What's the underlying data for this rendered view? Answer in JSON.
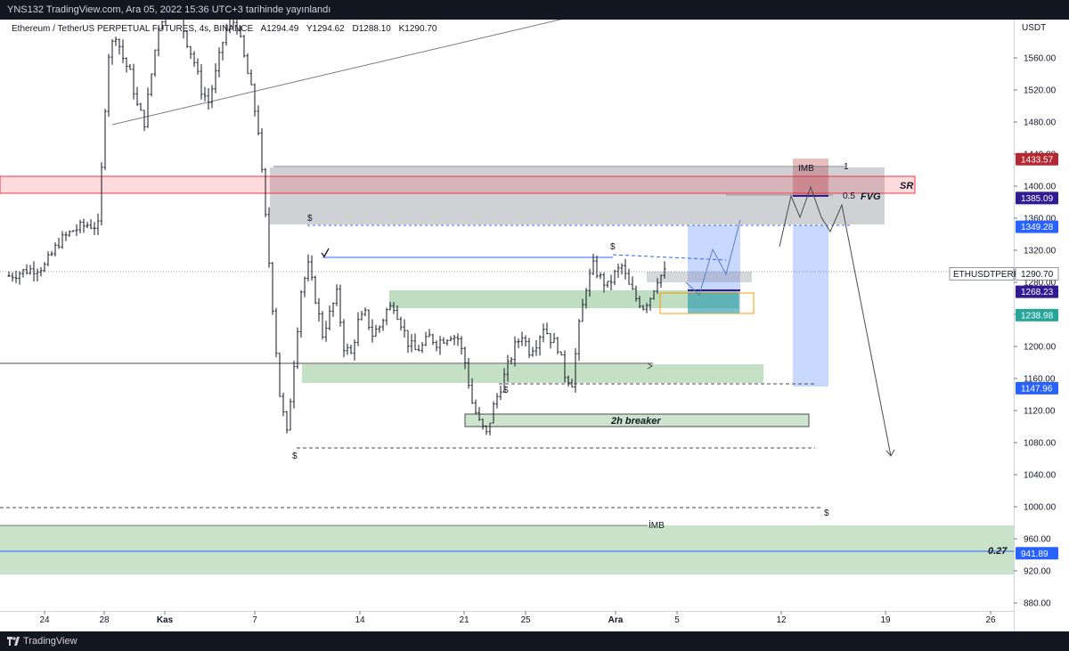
{
  "header": {
    "publish_line": "YNS132 TradingView.com, Ara 05, 2022 15:36 UTC+3 tarihinde yayınlandı"
  },
  "footer": {
    "brand": "TradingView",
    "logo_icon": "tradingview-logo-icon"
  },
  "legend": {
    "symbol": "Ethereum / TetherUS PERPETUAL FUTURES, 4s, BINANCE",
    "open": "A1294.49",
    "high": "Y1294.62",
    "low": "D1288.10",
    "close": "K1290.70"
  },
  "colors": {
    "background": "#ffffff",
    "bar_color": "#131722",
    "demand_zone": "#9ccc9f",
    "sr_zone": "#f23645",
    "fvg_zone": "#787b86",
    "projection": "#2962ff",
    "stop_box": "#b22833"
  },
  "chart_data": {
    "type": "ohlc",
    "symbol": "ETHUSDTPERP",
    "currency_label": "USDT",
    "ylim": [
      860,
      1630
    ],
    "y_ticks": [
      880,
      920,
      960,
      1000,
      1040,
      1080,
      1120,
      1160,
      1200,
      1240,
      1280,
      1320,
      1360,
      1400,
      1440,
      1480,
      1520,
      1560
    ],
    "x_ticks": [
      "24",
      "28",
      "Kas",
      "7",
      "14",
      "21",
      "25",
      "Ara",
      "5",
      "12",
      "19",
      "26"
    ],
    "price_path": [
      [
        0,
        1288
      ],
      [
        5,
        1295
      ],
      [
        10,
        1300
      ],
      [
        14,
        1330
      ],
      [
        18,
        1345
      ],
      [
        22,
        1352
      ],
      [
        25,
        1350
      ],
      [
        26,
        1420
      ],
      [
        27,
        1500
      ],
      [
        28,
        1565
      ],
      [
        30,
        1590
      ],
      [
        32,
        1560
      ],
      [
        34,
        1540
      ],
      [
        36,
        1500
      ],
      [
        38,
        1480
      ],
      [
        40,
        1540
      ],
      [
        42,
        1600
      ],
      [
        44,
        1620
      ],
      [
        46,
        1625
      ],
      [
        48,
        1610
      ],
      [
        50,
        1580
      ],
      [
        52,
        1555
      ],
      [
        54,
        1520
      ],
      [
        56,
        1505
      ],
      [
        58,
        1540
      ],
      [
        60,
        1580
      ],
      [
        62,
        1610
      ],
      [
        64,
        1600
      ],
      [
        66,
        1560
      ],
      [
        68,
        1520
      ],
      [
        70,
        1470
      ],
      [
        72,
        1360
      ],
      [
        74,
        1250
      ],
      [
        76,
        1140
      ],
      [
        78,
        1090
      ],
      [
        80,
        1180
      ],
      [
        82,
        1270
      ],
      [
        84,
        1300
      ],
      [
        86,
        1260
      ],
      [
        88,
        1215
      ],
      [
        90,
        1240
      ],
      [
        92,
        1265
      ],
      [
        94,
        1200
      ],
      [
        96,
        1190
      ],
      [
        98,
        1230
      ],
      [
        100,
        1240
      ],
      [
        102,
        1215
      ],
      [
        104,
        1225
      ],
      [
        106,
        1245
      ],
      [
        108,
        1252
      ],
      [
        110,
        1230
      ],
      [
        112,
        1205
      ],
      [
        114,
        1195
      ],
      [
        116,
        1200
      ],
      [
        118,
        1212
      ],
      [
        120,
        1205
      ],
      [
        122,
        1210
      ],
      [
        124,
        1215
      ],
      [
        126,
        1210
      ],
      [
        128,
        1180
      ],
      [
        130,
        1130
      ],
      [
        132,
        1105
      ],
      [
        134,
        1090
      ],
      [
        136,
        1125
      ],
      [
        138,
        1150
      ],
      [
        140,
        1175
      ],
      [
        142,
        1200
      ],
      [
        144,
        1215
      ],
      [
        146,
        1195
      ],
      [
        148,
        1205
      ],
      [
        150,
        1225
      ],
      [
        152,
        1210
      ],
      [
        154,
        1200
      ],
      [
        156,
        1165
      ],
      [
        158,
        1155
      ],
      [
        160,
        1225
      ],
      [
        162,
        1275
      ],
      [
        164,
        1300
      ],
      [
        166,
        1285
      ],
      [
        168,
        1275
      ],
      [
        170,
        1290
      ],
      [
        172,
        1300
      ],
      [
        174,
        1275
      ],
      [
        176,
        1260
      ],
      [
        178,
        1250
      ],
      [
        180,
        1262
      ],
      [
        182,
        1285
      ],
      [
        184,
        1292
      ]
    ],
    "levels": [
      {
        "label": "ETHUSDTPERP",
        "value": 1290.7
      },
      {
        "label": "",
        "value": 1433.57
      },
      {
        "label": "",
        "value": 1385.09
      },
      {
        "label": "",
        "value": 1349.28
      },
      {
        "label": "",
        "value": 1268.23
      },
      {
        "label": "",
        "value": 1238.98
      },
      {
        "label": "",
        "value": 1147.96
      },
      {
        "label": "",
        "value": 941.89
      }
    ],
    "annotations": [
      "SR",
      "FVG",
      "2h breaker",
      "IMB",
      "IMB",
      "0.27",
      "0.5",
      "1",
      "$",
      "$",
      "$",
      "$",
      "$"
    ]
  }
}
